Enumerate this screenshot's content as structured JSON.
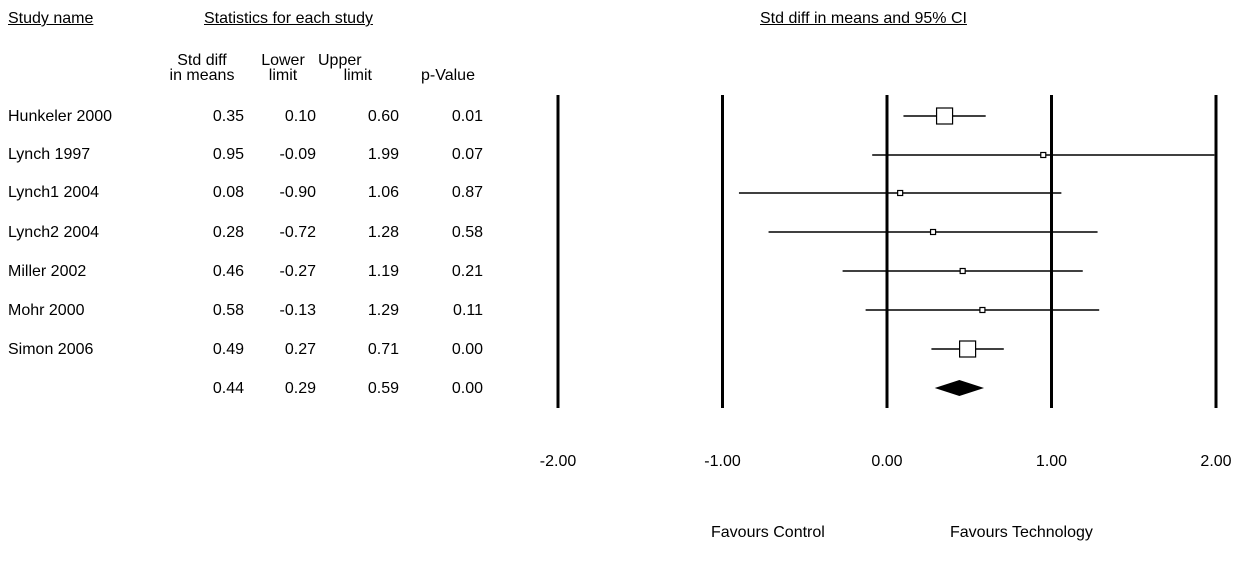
{
  "headers": {
    "study_name": "Study name",
    "statistics": "Statistics for each study",
    "plot_title": "Std diff in means and 95% CI"
  },
  "columns": {
    "std_diff": [
      "Std diff",
      "in means"
    ],
    "lower": [
      "Lower",
      "limit"
    ],
    "upper": [
      "Upper",
      "limit"
    ],
    "p_value": [
      "p-Value"
    ]
  },
  "table": {
    "rows": [
      {
        "study": "Hunkeler 2000",
        "std_diff": "0.35",
        "lower": "0.10",
        "upper": "0.60",
        "p": "0.01"
      },
      {
        "study": "Lynch 1997",
        "std_diff": "0.95",
        "lower": "-0.09",
        "upper": "1.99",
        "p": "0.07"
      },
      {
        "study": "Lynch1 2004",
        "std_diff": "0.08",
        "lower": "-0.90",
        "upper": "1.06",
        "p": "0.87"
      },
      {
        "study": "Lynch2 2004",
        "std_diff": "0.28",
        "lower": "-0.72",
        "upper": "1.28",
        "p": "0.58"
      },
      {
        "study": "Miller 2002",
        "std_diff": "0.46",
        "lower": "-0.27",
        "upper": "1.19",
        "p": "0.21"
      },
      {
        "study": "Mohr 2000",
        "std_diff": "0.58",
        "lower": "-0.13",
        "upper": "1.29",
        "p": "0.11"
      },
      {
        "study": "Simon 2006",
        "std_diff": "0.49",
        "lower": "0.27",
        "upper": "0.71",
        "p": "0.00"
      },
      {
        "study": "",
        "std_diff": "0.44",
        "lower": "0.29",
        "upper": "0.59",
        "p": "0.00"
      }
    ]
  },
  "footer": {
    "favours_left": "Favours Control",
    "favours_right": "Favours Technology"
  },
  "chart_data": {
    "type": "forest",
    "title": "Std diff in means and 95% CI",
    "xlim": [
      -2,
      2
    ],
    "reference_lines": [
      -2,
      -1,
      0,
      1,
      2
    ],
    "tick_labels": [
      "-2.00",
      "-1.00",
      "0.00",
      "1.00",
      "2.00"
    ],
    "studies": [
      {
        "name": "Hunkeler 2000",
        "effect": 0.35,
        "lower": 0.1,
        "upper": 0.6,
        "weight": "large"
      },
      {
        "name": "Lynch 1997",
        "effect": 0.95,
        "lower": -0.09,
        "upper": 1.99,
        "weight": "small"
      },
      {
        "name": "Lynch1 2004",
        "effect": 0.08,
        "lower": -0.9,
        "upper": 1.06,
        "weight": "small"
      },
      {
        "name": "Lynch2 2004",
        "effect": 0.28,
        "lower": -0.72,
        "upper": 1.28,
        "weight": "small"
      },
      {
        "name": "Miller 2002",
        "effect": 0.46,
        "lower": -0.27,
        "upper": 1.19,
        "weight": "small"
      },
      {
        "name": "Mohr 2000",
        "effect": 0.58,
        "lower": -0.13,
        "upper": 1.29,
        "weight": "small"
      },
      {
        "name": "Simon 2006",
        "effect": 0.49,
        "lower": 0.27,
        "upper": 0.71,
        "weight": "large"
      }
    ],
    "summary": {
      "effect": 0.44,
      "lower": 0.29,
      "upper": 0.59
    },
    "colors": {
      "marks": "#000000",
      "box_fill": "#ffffff"
    }
  }
}
